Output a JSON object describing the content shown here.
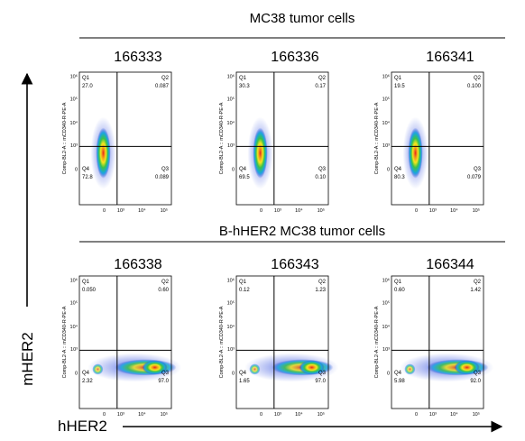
{
  "y_label": "mHER2",
  "x_label": "hHER2",
  "axes": {
    "y_axis_label": "Comp-BL2-A :: mCD340-R-PE-A",
    "y_ticks": [
      "10⁶",
      "10⁵",
      "10⁴",
      "10³",
      "0"
    ],
    "x_ticks": [
      "0",
      "10³",
      "10⁴",
      "10⁵"
    ],
    "quadrant_names": [
      "Q1",
      "Q2",
      "Q3",
      "Q4"
    ]
  },
  "sections": [
    {
      "title": "MC38 tumor cells",
      "panels": [
        {
          "id": "166333",
          "quadrants": [
            "27.0",
            "0.087",
            "0.089",
            "72.8"
          ]
        },
        {
          "id": "166336",
          "quadrants": [
            "30.3",
            "0.17",
            "0.10",
            "69.5"
          ]
        },
        {
          "id": "166341",
          "quadrants": [
            "19.5",
            "0.100",
            "0.079",
            "80.3"
          ]
        }
      ]
    },
    {
      "title": "B-hHER2 MC38 tumor cells",
      "panels": [
        {
          "id": "166338",
          "quadrants": [
            "0.050",
            "0.60",
            "97.0",
            "2.32"
          ]
        },
        {
          "id": "166343",
          "quadrants": [
            "0.12",
            "1.23",
            "97.0",
            "1.65"
          ]
        },
        {
          "id": "166344",
          "quadrants": [
            "0.60",
            "1.42",
            "92.0",
            "5.98"
          ]
        }
      ]
    }
  ]
}
